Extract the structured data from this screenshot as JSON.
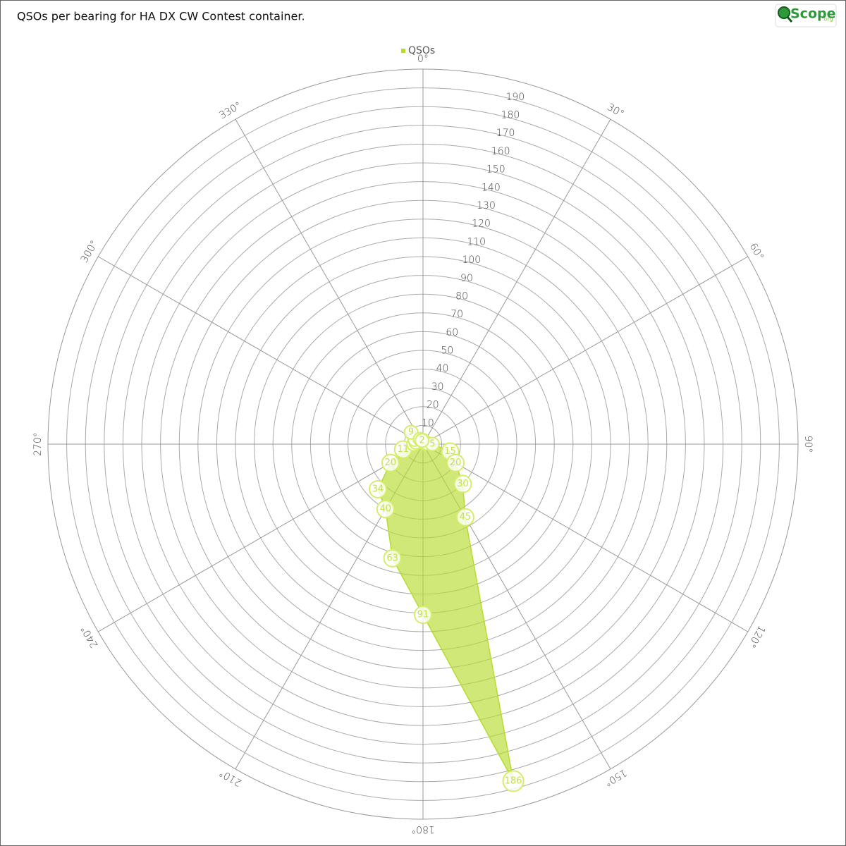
{
  "chart_data": {
    "type": "polar-area",
    "title": "QSOs per bearing for HA DX CW Contest container.",
    "logo": {
      "text": "Scope",
      "suffix": ".org"
    },
    "x": [
      0,
      15,
      30,
      45,
      60,
      75,
      90,
      105,
      120,
      135,
      150,
      165,
      180,
      195,
      210,
      225,
      240,
      255,
      270,
      285,
      300,
      315,
      330,
      345
    ],
    "series": [
      {
        "name": "QSOs",
        "color": "#b5dc2e",
        "values": [
          2,
          1,
          1,
          1,
          1,
          2,
          5,
          15,
          20,
          30,
          45,
          186,
          91,
          63,
          40,
          34,
          20,
          11,
          5,
          4,
          5,
          9,
          3,
          2
        ]
      }
    ],
    "ylim": [
      0,
      200
    ],
    "yticks": [
      10,
      20,
      30,
      40,
      50,
      60,
      70,
      80,
      90,
      100,
      110,
      120,
      130,
      140,
      150,
      160,
      170,
      180,
      190
    ],
    "xticks": [
      {
        "value": 0,
        "label": "0°"
      },
      {
        "value": 30,
        "label": "30°"
      },
      {
        "value": 60,
        "label": "60°"
      },
      {
        "value": 90,
        "label": "90°"
      },
      {
        "value": 120,
        "label": "120°"
      },
      {
        "value": 150,
        "label": "150°"
      },
      {
        "value": 180,
        "label": "180°"
      },
      {
        "value": 210,
        "label": "210°"
      },
      {
        "value": 240,
        "label": "240°"
      },
      {
        "value": 270,
        "label": "270°"
      },
      {
        "value": 300,
        "label": "300°"
      },
      {
        "value": 330,
        "label": "330°"
      }
    ],
    "grid": true,
    "legend": "top"
  }
}
